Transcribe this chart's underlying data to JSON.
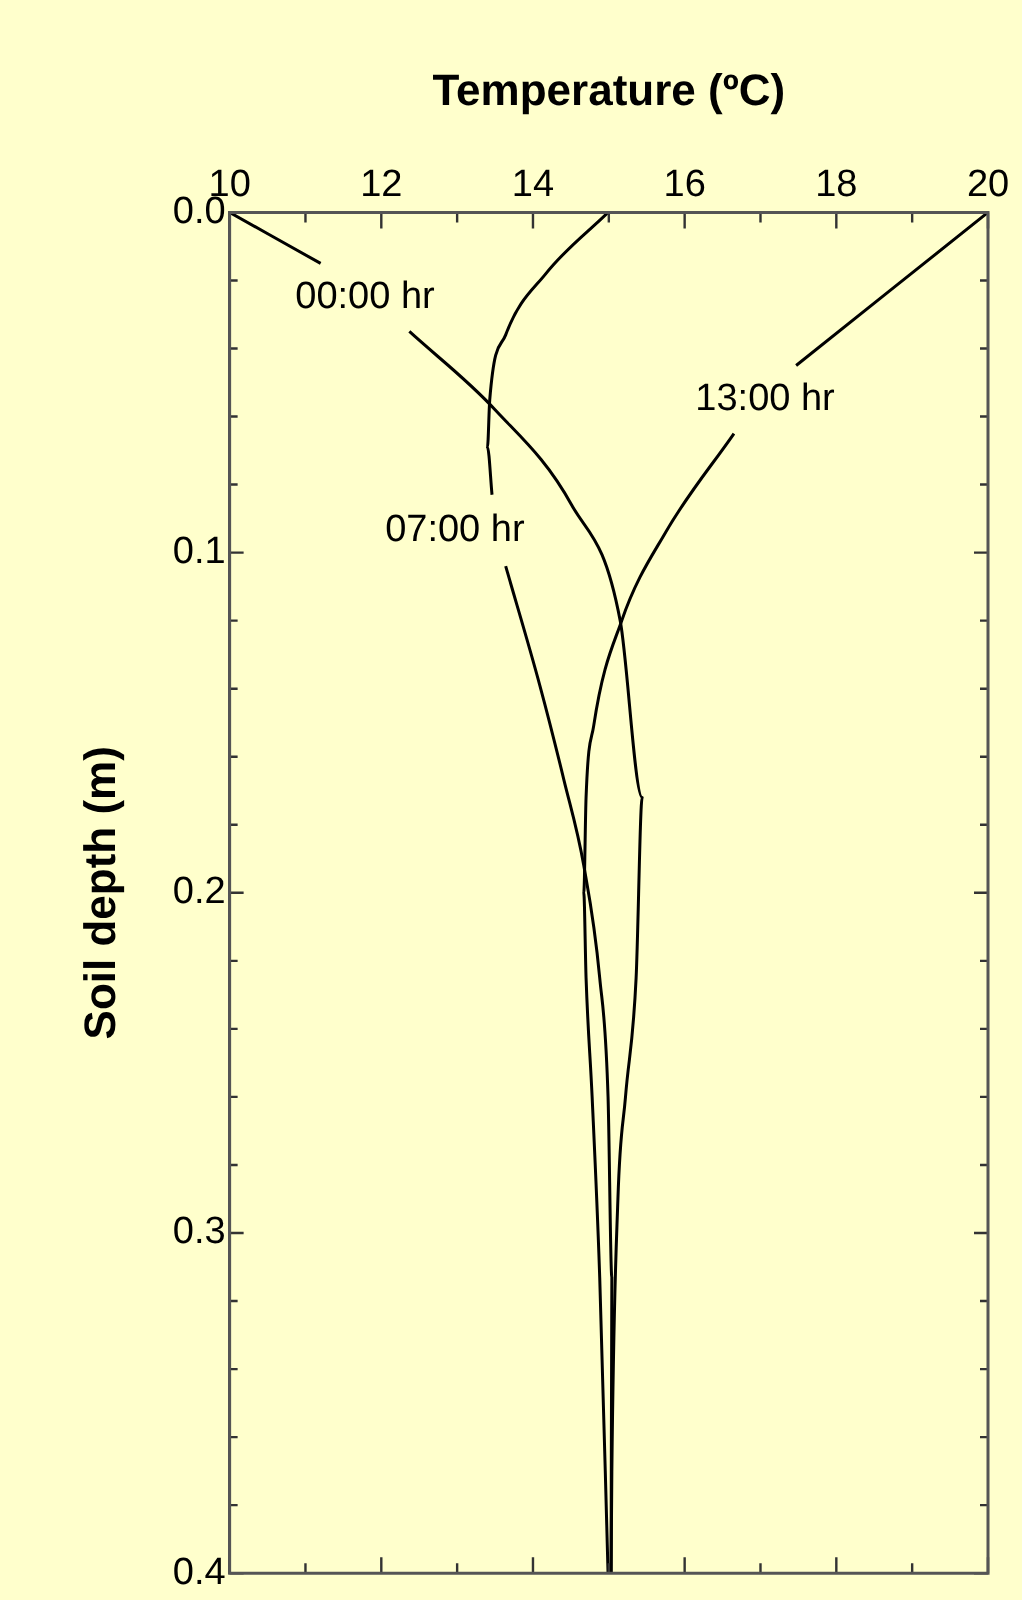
{
  "chart_data": {
    "type": "line",
    "xlabel": "Temperature (ºC)",
    "ylabel": "Soil depth (m)",
    "marker": "none",
    "line_style": "solid",
    "grid": false,
    "legend": false,
    "xlim": [
      10,
      20
    ],
    "ylim": [
      0.4,
      0
    ],
    "xticks": [
      10,
      {
        "value": 11,
        "label": null
      },
      12,
      {
        "value": 13,
        "label": null
      },
      14,
      {
        "value": 15,
        "label": null
      },
      16,
      {
        "value": 17,
        "label": null
      },
      18,
      {
        "value": 19,
        "label": null
      },
      20
    ],
    "yticks": [
      {
        "value": 0,
        "label": "0.0"
      },
      {
        "value": 0.02,
        "label": null
      },
      {
        "value": 0.04,
        "label": null
      },
      {
        "value": 0.06,
        "label": null
      },
      {
        "value": 0.08,
        "label": null
      },
      0.1,
      {
        "value": 0.12,
        "label": null
      },
      {
        "value": 0.14,
        "label": null
      },
      {
        "value": 0.16,
        "label": null
      },
      {
        "value": 0.18,
        "label": null
      },
      0.2,
      {
        "value": 0.22,
        "label": null
      },
      {
        "value": 0.24,
        "label": null
      },
      {
        "value": 0.26,
        "label": null
      },
      {
        "value": 0.28,
        "label": null
      },
      0.3,
      {
        "value": 0.32,
        "label": null
      },
      {
        "value": 0.34,
        "label": null
      },
      {
        "value": 0.36,
        "label": null
      },
      {
        "value": 0.38,
        "label": null
      },
      0.4
    ],
    "series": [
      {
        "name": "00:00 hr",
        "color": "#000000",
        "x": [
          10,
          11.2,
          11.77,
          12.37,
          13.5,
          14.51,
          15.15,
          15.44,
          15.36,
          15.22,
          15.12,
          15.04,
          15.03
        ],
        "values": [
          0,
          0.015,
          null,
          0.035,
          0.058,
          0.086,
          0.12,
          0.172,
          0.225,
          0.26,
          0.29,
          0.37,
          0.4
        ]
      },
      {
        "name": "07:00 hr",
        "color": "#000000",
        "x": [
          14.99,
          14.17,
          13.64,
          13.43,
          13.4,
          13.46,
          13.55,
          13.64,
          14.09,
          14.41,
          14.67,
          14.88,
          14.99,
          15.04,
          15.03
        ],
        "values": [
          0,
          0.018,
          0.036,
          0.055,
          0.069,
          0.083,
          null,
          0.104,
          0.139,
          0.167,
          0.192,
          0.225,
          0.26,
          0.313,
          0.4
        ]
      },
      {
        "name": "13:00 hr",
        "color": "#000000",
        "x": [
          20,
          17.47,
          17.05,
          16.65,
          15.75,
          15.17,
          14.8,
          14.7,
          14.67,
          14.7,
          14.78,
          14.88,
          14.99
        ],
        "values": [
          0,
          0.045,
          null,
          0.065,
          0.094,
          0.12,
          0.151,
          0.172,
          0.2,
          0.225,
          0.26,
          0.313,
          0.4
        ]
      }
    ]
  }
}
